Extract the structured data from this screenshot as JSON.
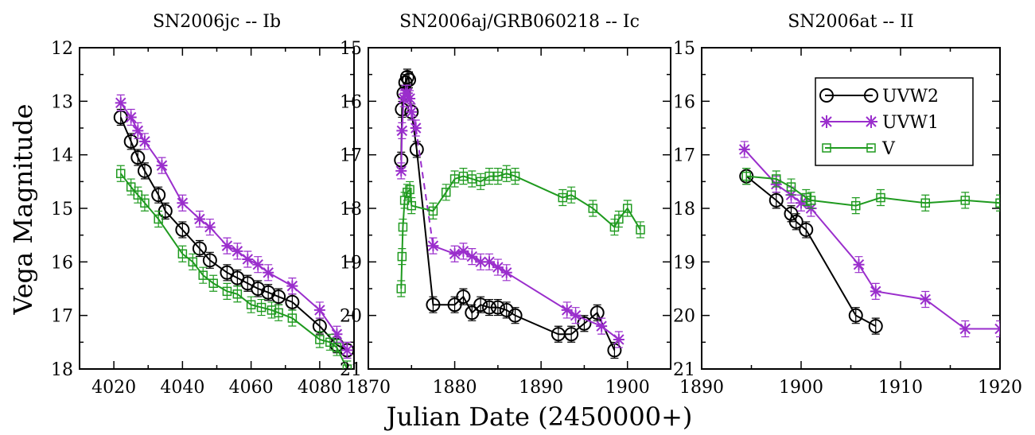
{
  "figure": {
    "ylabel": "Vega Magnitude",
    "xlabel": "Julian Date (2450000+)"
  },
  "colors": {
    "UVW2": "#000000",
    "UVW1": "#9a2ecc",
    "V": "#1f9a1f"
  },
  "legend": {
    "panel": 2,
    "entries": [
      {
        "name": "UVW2",
        "marker": "circle"
      },
      {
        "name": "UVW1",
        "marker": "star"
      },
      {
        "name": "V",
        "marker": "square"
      }
    ]
  },
  "chart_data": [
    {
      "type": "scatter",
      "title": "SN2006jc -- Ib",
      "xlim": [
        4010,
        4090
      ],
      "ylim": [
        18,
        12
      ],
      "y_inverted": true,
      "xticks": [
        "4020",
        "4040",
        "4060",
        "4080"
      ],
      "xtick_values": [
        4020,
        4040,
        4060,
        4080
      ],
      "yticks": [
        "12",
        "13",
        "14",
        "15",
        "16",
        "17",
        "18"
      ],
      "ytick_values": [
        12,
        13,
        14,
        15,
        16,
        17,
        18
      ],
      "series": [
        {
          "name": "UVW2",
          "marker": "circle",
          "style": "solid",
          "points": [
            [
              4022,
              13.3
            ],
            [
              4025,
              13.75
            ],
            [
              4027,
              14.05
            ],
            [
              4029,
              14.3
            ],
            [
              4033,
              14.75
            ],
            [
              4035,
              15.05
            ],
            [
              4040,
              15.4
            ],
            [
              4045,
              15.75
            ],
            [
              4048,
              15.97
            ],
            [
              4053,
              16.2
            ],
            [
              4056,
              16.3
            ],
            [
              4059,
              16.4
            ],
            [
              4062,
              16.5
            ],
            [
              4065,
              16.57
            ],
            [
              4068,
              16.65
            ],
            [
              4072,
              16.75
            ],
            [
              4080,
              17.2
            ],
            [
              4085,
              17.55
            ],
            [
              4088,
              17.65
            ]
          ]
        },
        {
          "name": "UVW1",
          "marker": "star",
          "style": "solid",
          "points": [
            [
              4022,
              13.03
            ],
            [
              4025,
              13.3
            ],
            [
              4027,
              13.55
            ],
            [
              4029,
              13.75
            ],
            [
              4034,
              14.2
            ],
            [
              4040,
              14.9
            ],
            [
              4045,
              15.2
            ],
            [
              4048,
              15.35
            ],
            [
              4053,
              15.7
            ],
            [
              4056,
              15.8
            ],
            [
              4059,
              15.95
            ],
            [
              4062,
              16.05
            ],
            [
              4065,
              16.2
            ],
            [
              4072,
              16.45
            ],
            [
              4080,
              16.9
            ],
            [
              4085,
              17.35
            ],
            [
              4088,
              17.65
            ]
          ]
        },
        {
          "name": "V",
          "marker": "square",
          "style": "solid",
          "points": [
            [
              4022,
              14.35
            ],
            [
              4025,
              14.6
            ],
            [
              4027,
              14.75
            ],
            [
              4029,
              14.9
            ],
            [
              4033,
              15.2
            ],
            [
              4040,
              15.85
            ],
            [
              4043,
              16.0
            ],
            [
              4046,
              16.25
            ],
            [
              4049,
              16.4
            ],
            [
              4053,
              16.55
            ],
            [
              4056,
              16.6
            ],
            [
              4060,
              16.8
            ],
            [
              4063,
              16.85
            ],
            [
              4066,
              16.9
            ],
            [
              4068,
              16.95
            ],
            [
              4072,
              17.05
            ],
            [
              4080,
              17.45
            ],
            [
              4083,
              17.5
            ],
            [
              4085,
              17.6
            ],
            [
              4088,
              18.0
            ]
          ]
        }
      ]
    },
    {
      "type": "scatter",
      "title": "SN2006aj/GRB060218 -- Ic",
      "xlim": [
        1870,
        1905
      ],
      "ylim": [
        21,
        15
      ],
      "y_inverted": true,
      "xticks": [
        "1870",
        "1880",
        "1890",
        "1900"
      ],
      "xtick_values": [
        1870,
        1880,
        1890,
        1900
      ],
      "yticks": [
        "15",
        "16",
        "17",
        "18",
        "19",
        "20",
        "21"
      ],
      "ytick_values": [
        15,
        16,
        17,
        18,
        19,
        20,
        21
      ],
      "series": [
        {
          "name": "UVW2",
          "marker": "circle",
          "style": "solid",
          "points": [
            [
              1873.8,
              17.1
            ],
            [
              1873.9,
              16.15
            ],
            [
              1874.1,
              15.85
            ],
            [
              1874.3,
              15.65
            ],
            [
              1874.5,
              15.55
            ],
            [
              1874.7,
              15.6
            ],
            [
              1875.0,
              16.2
            ],
            [
              1875.6,
              16.9
            ],
            [
              1877.5,
              19.8
            ],
            [
              1880.0,
              19.8
            ],
            [
              1881.0,
              19.65
            ],
            [
              1882.0,
              19.95
            ],
            [
              1883.0,
              19.8
            ],
            [
              1884.0,
              19.85
            ],
            [
              1885.0,
              19.85
            ],
            [
              1886.0,
              19.9
            ],
            [
              1887.0,
              20.0
            ],
            [
              1892.0,
              20.35
            ],
            [
              1893.5,
              20.35
            ],
            [
              1895.0,
              20.15
            ],
            [
              1896.5,
              19.95
            ],
            [
              1898.5,
              20.65
            ]
          ]
        },
        {
          "name": "UVW1",
          "marker": "star",
          "style": "mixed",
          "points": [
            [
              1873.8,
              17.3
            ],
            [
              1873.9,
              16.55
            ],
            [
              1874.1,
              15.95
            ],
            [
              1874.3,
              15.85
            ],
            [
              1874.5,
              15.85
            ],
            [
              1874.8,
              15.95
            ],
            [
              1875.0,
              16.2
            ],
            [
              1875.5,
              16.5
            ],
            [
              1877.5,
              18.7
            ],
            [
              1880.0,
              18.85
            ],
            [
              1881.0,
              18.8
            ],
            [
              1882.0,
              18.9
            ],
            [
              1883.0,
              19.0
            ],
            [
              1884.0,
              19.0
            ],
            [
              1885.0,
              19.1
            ],
            [
              1886.0,
              19.2
            ],
            [
              1893.0,
              19.9
            ],
            [
              1894.0,
              20.0
            ],
            [
              1897.0,
              20.2
            ],
            [
              1899.0,
              20.45
            ]
          ]
        },
        {
          "name": "V",
          "marker": "square",
          "style": "solid",
          "points": [
            [
              1873.8,
              19.5
            ],
            [
              1873.9,
              18.9
            ],
            [
              1874.0,
              18.35
            ],
            [
              1874.2,
              17.85
            ],
            [
              1874.5,
              17.7
            ],
            [
              1874.8,
              17.65
            ],
            [
              1875.0,
              17.95
            ],
            [
              1877.5,
              18.05
            ],
            [
              1879.0,
              17.7
            ],
            [
              1880.0,
              17.45
            ],
            [
              1881.0,
              17.4
            ],
            [
              1882.0,
              17.45
            ],
            [
              1883.0,
              17.5
            ],
            [
              1884.0,
              17.4
            ],
            [
              1885.0,
              17.4
            ],
            [
              1886.0,
              17.35
            ],
            [
              1887.0,
              17.4
            ],
            [
              1892.5,
              17.8
            ],
            [
              1893.5,
              17.75
            ],
            [
              1896.0,
              18.0
            ],
            [
              1898.5,
              18.35
            ],
            [
              1899.0,
              18.2
            ],
            [
              1900.0,
              18.0
            ],
            [
              1901.5,
              18.4
            ]
          ]
        }
      ]
    },
    {
      "type": "scatter",
      "title": "SN2006at -- II",
      "xlim": [
        1890,
        1920
      ],
      "ylim": [
        21,
        15
      ],
      "y_inverted": true,
      "xticks": [
        "1890",
        "1900",
        "1910",
        "1920"
      ],
      "xtick_values": [
        1890,
        1900,
        1910,
        1920
      ],
      "yticks": [
        "15",
        "16",
        "17",
        "18",
        "19",
        "20",
        "21"
      ],
      "ytick_values": [
        15,
        16,
        17,
        18,
        19,
        20,
        21
      ],
      "series": [
        {
          "name": "UVW2",
          "marker": "circle",
          "style": "solid",
          "points": [
            [
              1894.5,
              17.4
            ],
            [
              1897.5,
              17.85
            ],
            [
              1899.0,
              18.1
            ],
            [
              1899.5,
              18.25
            ],
            [
              1900.5,
              18.4
            ],
            [
              1905.5,
              20.0
            ],
            [
              1907.5,
              20.2
            ]
          ]
        },
        {
          "name": "UVW1",
          "marker": "star",
          "style": "solid",
          "points": [
            [
              1894.3,
              16.9
            ],
            [
              1897.5,
              17.55
            ],
            [
              1899.0,
              17.75
            ],
            [
              1900.0,
              17.9
            ],
            [
              1901.0,
              18.0
            ],
            [
              1905.8,
              19.05
            ],
            [
              1907.5,
              19.55
            ],
            [
              1912.5,
              19.7
            ],
            [
              1916.5,
              20.25
            ],
            [
              1920,
              20.25
            ]
          ]
        },
        {
          "name": "V",
          "marker": "square",
          "style": "solid",
          "points": [
            [
              1894.5,
              17.4
            ],
            [
              1897.5,
              17.45
            ],
            [
              1899.0,
              17.6
            ],
            [
              1900.5,
              17.8
            ],
            [
              1901.0,
              17.85
            ],
            [
              1905.5,
              17.95
            ],
            [
              1908.0,
              17.8
            ],
            [
              1912.5,
              17.9
            ],
            [
              1916.5,
              17.85
            ],
            [
              1920,
              17.9
            ]
          ]
        }
      ]
    }
  ]
}
